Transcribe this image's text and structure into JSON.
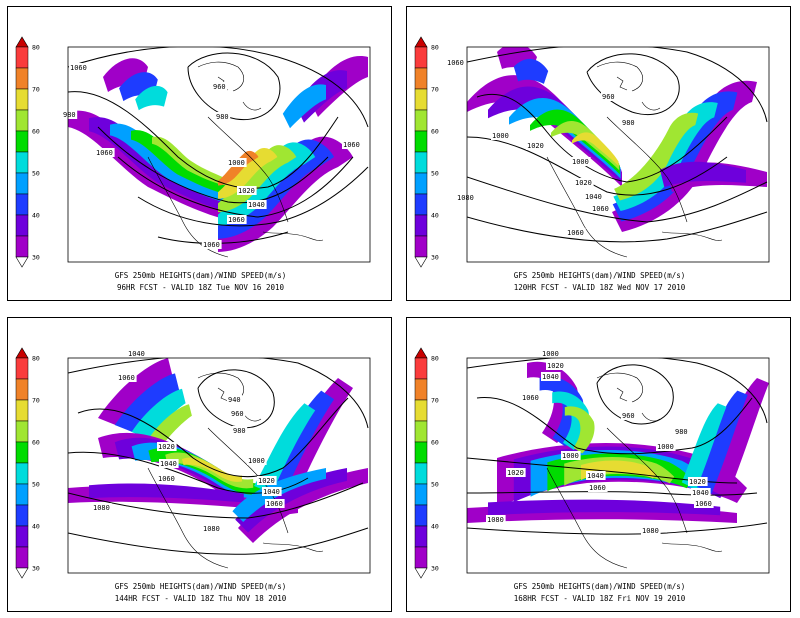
{
  "colorbar": {
    "ticks": [
      "30",
      "40",
      "50",
      "60",
      "70",
      "80"
    ],
    "colors": [
      "#a000c8",
      "#6e00dc",
      "#1e3cff",
      "#00a0ff",
      "#00dcdc",
      "#00dc00",
      "#a0e632",
      "#e6dc32",
      "#f08228",
      "#fa3c3c"
    ]
  },
  "panels": [
    {
      "title": "GFS 250mb HEIGHTS(dam)/WIND SPEED(m/s)",
      "subtitle": "96HR FCST  -  VALID  18Z  Tue NOV 16 2010",
      "labels": [
        "1060",
        "980",
        "1060",
        "960",
        "980",
        "1060",
        "1000",
        "1020",
        "1040",
        "1060",
        "1060"
      ]
    },
    {
      "title": "GFS 250mb HEIGHTS(dam)/WIND SPEED(m/s)",
      "subtitle": "120HR FCST  -  VALID  18Z  Wed NOV 17 2010",
      "labels": [
        "1060",
        "960",
        "980",
        "1000",
        "1020",
        "1000",
        "1020",
        "1040",
        "1060",
        "1060",
        "1080"
      ]
    },
    {
      "title": "GFS 250mb HEIGHTS(dam)/WIND SPEED(m/s)",
      "subtitle": "144HR FCST  -  VALID  18Z  Thu NOV 18 2010",
      "labels": [
        "1040",
        "1060",
        "940",
        "960",
        "980",
        "1000",
        "1020",
        "1040",
        "1020",
        "1040",
        "1060",
        "1060",
        "1080",
        "1080"
      ]
    },
    {
      "title": "GFS 250mb HEIGHTS(dam)/WIND SPEED(m/s)",
      "subtitle": "168HR FCST  -  VALID  18Z  Fri NOV 19 2010",
      "labels": [
        "1000",
        "1020",
        "1040",
        "1060",
        "960",
        "980",
        "1000",
        "1000",
        "1020",
        "1040",
        "1060",
        "1020",
        "1040",
        "1060",
        "1080",
        "1080"
      ]
    }
  ]
}
